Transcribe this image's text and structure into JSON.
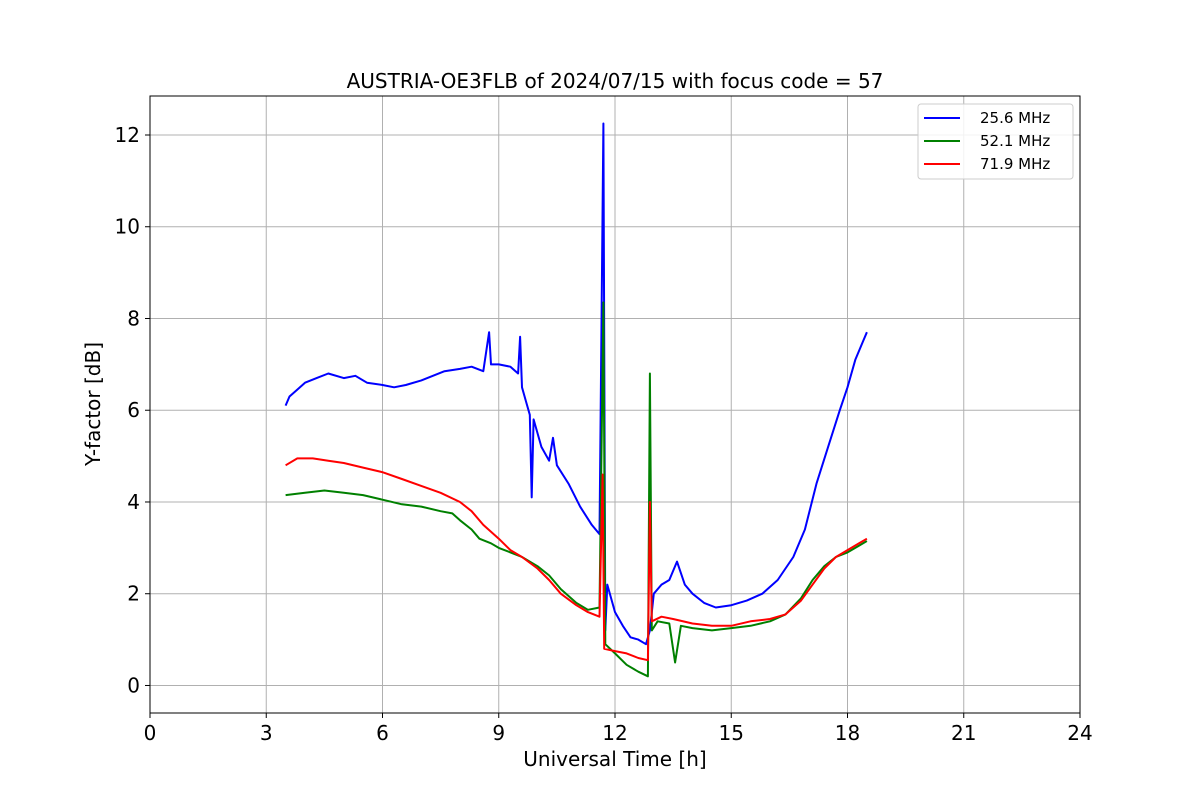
{
  "chart_data": {
    "type": "line",
    "title": "AUSTRIA-OE3FLB of 2024/07/15 with focus code = 57",
    "xlabel": "Universal Time [h]",
    "ylabel": "Y-factor [dB]",
    "xlim": [
      0,
      24
    ],
    "ylim": [
      -0.6,
      12.85
    ],
    "xticks": [
      0,
      3,
      6,
      9,
      12,
      15,
      18,
      21,
      24
    ],
    "xtick_labels": [
      "0",
      "3",
      "6",
      "9",
      "12",
      "15",
      "18",
      "21",
      "24"
    ],
    "yticks": [
      0,
      2,
      4,
      6,
      8,
      10,
      12
    ],
    "ytick_labels": [
      "0",
      "2",
      "4",
      "6",
      "8",
      "10",
      "12"
    ],
    "grid": true,
    "legend_position": "top-right",
    "series": [
      {
        "name": "25.6 MHz",
        "color": "#0000ff",
        "points": [
          [
            3.5,
            6.1
          ],
          [
            3.6,
            6.3
          ],
          [
            3.8,
            6.45
          ],
          [
            4.0,
            6.6
          ],
          [
            4.3,
            6.7
          ],
          [
            4.6,
            6.8
          ],
          [
            5.0,
            6.7
          ],
          [
            5.3,
            6.75
          ],
          [
            5.6,
            6.6
          ],
          [
            6.0,
            6.55
          ],
          [
            6.3,
            6.5
          ],
          [
            6.6,
            6.55
          ],
          [
            7.0,
            6.65
          ],
          [
            7.3,
            6.75
          ],
          [
            7.6,
            6.85
          ],
          [
            8.0,
            6.9
          ],
          [
            8.3,
            6.95
          ],
          [
            8.6,
            6.85
          ],
          [
            8.75,
            7.7
          ],
          [
            8.8,
            7.0
          ],
          [
            9.0,
            7.0
          ],
          [
            9.3,
            6.95
          ],
          [
            9.5,
            6.8
          ],
          [
            9.55,
            7.6
          ],
          [
            9.6,
            6.5
          ],
          [
            9.7,
            6.2
          ],
          [
            9.8,
            5.9
          ],
          [
            9.85,
            4.1
          ],
          [
            9.9,
            5.8
          ],
          [
            10.1,
            5.2
          ],
          [
            10.3,
            4.9
          ],
          [
            10.4,
            5.4
          ],
          [
            10.5,
            4.8
          ],
          [
            10.8,
            4.4
          ],
          [
            11.1,
            3.9
          ],
          [
            11.4,
            3.5
          ],
          [
            11.6,
            3.3
          ],
          [
            11.7,
            12.25
          ],
          [
            11.75,
            1.2
          ],
          [
            11.8,
            2.2
          ],
          [
            12.0,
            1.6
          ],
          [
            12.2,
            1.3
          ],
          [
            12.4,
            1.05
          ],
          [
            12.6,
            1.0
          ],
          [
            12.8,
            0.9
          ],
          [
            12.9,
            1.2
          ],
          [
            13.0,
            2.0
          ],
          [
            13.2,
            2.2
          ],
          [
            13.4,
            2.3
          ],
          [
            13.6,
            2.7
          ],
          [
            13.8,
            2.2
          ],
          [
            14.0,
            2.0
          ],
          [
            14.3,
            1.8
          ],
          [
            14.6,
            1.7
          ],
          [
            15.0,
            1.75
          ],
          [
            15.4,
            1.85
          ],
          [
            15.8,
            2.0
          ],
          [
            16.2,
            2.3
          ],
          [
            16.6,
            2.8
          ],
          [
            16.9,
            3.4
          ],
          [
            17.2,
            4.4
          ],
          [
            17.5,
            5.2
          ],
          [
            17.8,
            6.0
          ],
          [
            18.0,
            6.5
          ],
          [
            18.2,
            7.1
          ],
          [
            18.4,
            7.5
          ],
          [
            18.5,
            7.7
          ]
        ]
      },
      {
        "name": "52.1 MHz",
        "color": "#008000",
        "points": [
          [
            3.5,
            4.15
          ],
          [
            4.0,
            4.2
          ],
          [
            4.5,
            4.25
          ],
          [
            5.0,
            4.2
          ],
          [
            5.5,
            4.15
          ],
          [
            6.0,
            4.05
          ],
          [
            6.5,
            3.95
          ],
          [
            7.0,
            3.9
          ],
          [
            7.5,
            3.8
          ],
          [
            7.8,
            3.75
          ],
          [
            8.0,
            3.6
          ],
          [
            8.3,
            3.4
          ],
          [
            8.5,
            3.2
          ],
          [
            8.8,
            3.1
          ],
          [
            9.0,
            3.0
          ],
          [
            9.3,
            2.9
          ],
          [
            9.6,
            2.8
          ],
          [
            10.0,
            2.6
          ],
          [
            10.3,
            2.4
          ],
          [
            10.6,
            2.1
          ],
          [
            11.0,
            1.8
          ],
          [
            11.3,
            1.65
          ],
          [
            11.6,
            1.7
          ],
          [
            11.7,
            8.35
          ],
          [
            11.75,
            0.9
          ],
          [
            12.0,
            0.7
          ],
          [
            12.3,
            0.45
          ],
          [
            12.6,
            0.3
          ],
          [
            12.85,
            0.2
          ],
          [
            12.9,
            6.8
          ],
          [
            12.95,
            1.2
          ],
          [
            13.1,
            1.4
          ],
          [
            13.4,
            1.35
          ],
          [
            13.55,
            0.5
          ],
          [
            13.7,
            1.3
          ],
          [
            14.0,
            1.25
          ],
          [
            14.5,
            1.2
          ],
          [
            15.0,
            1.25
          ],
          [
            15.5,
            1.3
          ],
          [
            16.0,
            1.4
          ],
          [
            16.4,
            1.55
          ],
          [
            16.8,
            1.9
          ],
          [
            17.1,
            2.3
          ],
          [
            17.4,
            2.6
          ],
          [
            17.7,
            2.8
          ],
          [
            18.0,
            2.9
          ],
          [
            18.3,
            3.05
          ],
          [
            18.5,
            3.15
          ]
        ]
      },
      {
        "name": "71.9 MHz",
        "color": "#ff0000",
        "points": [
          [
            3.5,
            4.8
          ],
          [
            3.8,
            4.95
          ],
          [
            4.2,
            4.95
          ],
          [
            4.6,
            4.9
          ],
          [
            5.0,
            4.85
          ],
          [
            5.5,
            4.75
          ],
          [
            6.0,
            4.65
          ],
          [
            6.5,
            4.5
          ],
          [
            7.0,
            4.35
          ],
          [
            7.5,
            4.2
          ],
          [
            8.0,
            4.0
          ],
          [
            8.3,
            3.8
          ],
          [
            8.6,
            3.5
          ],
          [
            9.0,
            3.2
          ],
          [
            9.3,
            2.95
          ],
          [
            9.6,
            2.8
          ],
          [
            10.0,
            2.55
          ],
          [
            10.3,
            2.3
          ],
          [
            10.6,
            2.0
          ],
          [
            11.0,
            1.75
          ],
          [
            11.3,
            1.6
          ],
          [
            11.6,
            1.5
          ],
          [
            11.68,
            4.6
          ],
          [
            11.72,
            0.8
          ],
          [
            12.0,
            0.75
          ],
          [
            12.3,
            0.7
          ],
          [
            12.6,
            0.6
          ],
          [
            12.85,
            0.55
          ],
          [
            12.9,
            4.0
          ],
          [
            12.95,
            1.4
          ],
          [
            13.2,
            1.5
          ],
          [
            13.5,
            1.45
          ],
          [
            14.0,
            1.35
          ],
          [
            14.5,
            1.3
          ],
          [
            15.0,
            1.3
          ],
          [
            15.5,
            1.4
          ],
          [
            16.0,
            1.45
          ],
          [
            16.4,
            1.55
          ],
          [
            16.8,
            1.85
          ],
          [
            17.1,
            2.2
          ],
          [
            17.4,
            2.55
          ],
          [
            17.7,
            2.8
          ],
          [
            18.0,
            2.95
          ],
          [
            18.3,
            3.1
          ],
          [
            18.5,
            3.2
          ]
        ]
      }
    ]
  }
}
